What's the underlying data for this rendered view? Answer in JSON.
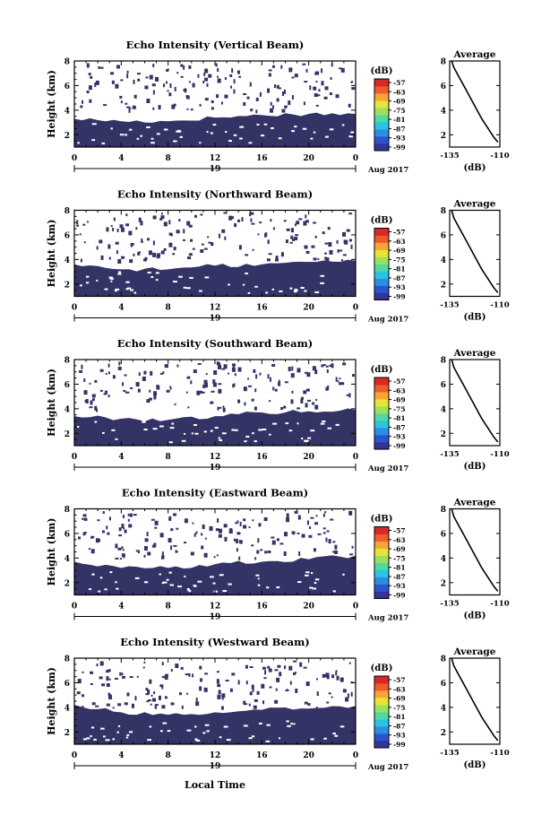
{
  "colors": {
    "low": "#333366",
    "colorbar": [
      "#333399",
      "#2c55cc",
      "#2a8ee8",
      "#2bc4e0",
      "#4ed8a4",
      "#9be25a",
      "#e8e23a",
      "#f6a632",
      "#f05a2c",
      "#d62a24"
    ]
  },
  "panels": [
    {
      "title": "Echo Intensity (Vertical Beam)",
      "ylabel": "Height (km)",
      "unit": "(dB)",
      "x_ticks": [
        "0",
        "4",
        "8",
        "12",
        "16",
        "20",
        "0"
      ],
      "date_label": "19",
      "month_label": "Aug 2017",
      "y_ticks": [
        "2",
        "4",
        "6",
        "8"
      ],
      "cb_ticks": [
        "-57",
        "-63",
        "-69",
        "-75",
        "-81",
        "-87",
        "-93",
        "-99"
      ],
      "avg_title": "Average",
      "avg_xticks": [
        "-135",
        "-110"
      ],
      "avg_yticks": [
        "2",
        "4",
        "6",
        "8"
      ],
      "avg_xlabel": "(dB)"
    },
    {
      "title": "Echo Intensity (Northward Beam)",
      "ylabel": "Height (km)",
      "unit": "(dB)",
      "x_ticks": [
        "0",
        "4",
        "8",
        "12",
        "16",
        "20",
        "0"
      ],
      "date_label": "19",
      "month_label": "Aug 2017",
      "y_ticks": [
        "2",
        "4",
        "6",
        "8"
      ],
      "cb_ticks": [
        "-57",
        "-63",
        "-69",
        "-75",
        "-81",
        "-87",
        "-93",
        "-99"
      ],
      "avg_title": "Average",
      "avg_xticks": [
        "-135",
        "-110"
      ],
      "avg_yticks": [
        "2",
        "4",
        "6",
        "8"
      ],
      "avg_xlabel": "(dB)"
    },
    {
      "title": "Echo Intensity (Southward Beam)",
      "ylabel": "Height (km)",
      "unit": "(dB)",
      "x_ticks": [
        "0",
        "4",
        "8",
        "12",
        "16",
        "20",
        "0"
      ],
      "date_label": "19",
      "month_label": "Aug 2017",
      "y_ticks": [
        "2",
        "4",
        "6",
        "8"
      ],
      "cb_ticks": [
        "-57",
        "-63",
        "-69",
        "-75",
        "-81",
        "-87",
        "-93",
        "-99"
      ],
      "avg_title": "Average",
      "avg_xticks": [
        "-135",
        "-110"
      ],
      "avg_yticks": [
        "2",
        "4",
        "6",
        "8"
      ],
      "avg_xlabel": "(dB)"
    },
    {
      "title": "Echo Intensity (Eastward Beam)",
      "ylabel": "Height (km)",
      "unit": "(dB)",
      "x_ticks": [
        "0",
        "4",
        "8",
        "12",
        "16",
        "20",
        "0"
      ],
      "date_label": "19",
      "month_label": "Aug 2017",
      "y_ticks": [
        "2",
        "4",
        "6",
        "8"
      ],
      "cb_ticks": [
        "-57",
        "-63",
        "-69",
        "-75",
        "-81",
        "-87",
        "-93",
        "-99"
      ],
      "avg_title": "Average",
      "avg_xticks": [
        "-135",
        "-110"
      ],
      "avg_yticks": [
        "2",
        "4",
        "6",
        "8"
      ],
      "avg_xlabel": "(dB)"
    },
    {
      "title": "Echo Intensity (Westward Beam)",
      "ylabel": "Height (km)",
      "unit": "(dB)",
      "x_ticks": [
        "0",
        "4",
        "8",
        "12",
        "16",
        "20",
        "0"
      ],
      "date_label": "19",
      "month_label": "Aug 2017",
      "y_ticks": [
        "2",
        "4",
        "6",
        "8"
      ],
      "cb_ticks": [
        "-57",
        "-63",
        "-69",
        "-75",
        "-81",
        "-87",
        "-93",
        "-99"
      ],
      "avg_title": "Average",
      "avg_xticks": [
        "-135",
        "-110"
      ],
      "avg_yticks": [
        "2",
        "4",
        "6",
        "8"
      ],
      "avg_xlabel": "(dB)"
    }
  ],
  "footer": {
    "xlabel": "Local Time"
  },
  "chart_data": [
    {
      "type": "heatmap",
      "title": "Echo Intensity (Vertical Beam)",
      "xlabel": "",
      "ylabel": "Height (km)",
      "xlim": [
        0,
        24
      ],
      "ylim": [
        1,
        8
      ],
      "colorbar_range": [
        -99,
        -57
      ],
      "echo_top_km": {
        "x": [
          0,
          4,
          8,
          12,
          16,
          20,
          24
        ],
        "y": [
          3.3,
          3.1,
          3.1,
          3.4,
          3.6,
          3.7,
          3.7
        ]
      }
    },
    {
      "type": "line",
      "title": "Average",
      "xlabel": "(dB)",
      "ylabel": "",
      "xlim": [
        -135,
        -110
      ],
      "ylim": [
        1,
        8
      ],
      "x": [
        -134,
        -133,
        -131,
        -129,
        -127,
        -125,
        -123,
        -121,
        -119,
        -117,
        -115,
        -113,
        -111
      ],
      "y": [
        8,
        7.5,
        6.9,
        6.3,
        5.7,
        5.1,
        4.5,
        3.9,
        3.3,
        2.8,
        2.3,
        1.8,
        1.4
      ]
    },
    {
      "type": "heatmap",
      "title": "Echo Intensity (Northward Beam)",
      "xlabel": "",
      "ylabel": "Height (km)",
      "xlim": [
        0,
        24
      ],
      "ylim": [
        1,
        8
      ],
      "colorbar_range": [
        -99,
        -57
      ],
      "echo_top_km": {
        "x": [
          0,
          4,
          8,
          12,
          16,
          20,
          24
        ],
        "y": [
          3.6,
          3.2,
          3.2,
          3.5,
          3.6,
          3.8,
          3.9
        ]
      }
    },
    {
      "type": "line",
      "title": "Average",
      "xlabel": "(dB)",
      "ylabel": "",
      "xlim": [
        -135,
        -110
      ],
      "ylim": [
        1,
        8
      ],
      "x": [
        -134,
        -133,
        -131,
        -129,
        -127,
        -125,
        -123,
        -121,
        -119,
        -117,
        -115,
        -113,
        -111
      ],
      "y": [
        8,
        7.4,
        6.8,
        6.2,
        5.6,
        5.0,
        4.4,
        3.8,
        3.2,
        2.7,
        2.2,
        1.7,
        1.3
      ]
    },
    {
      "type": "heatmap",
      "title": "Echo Intensity (Southward Beam)",
      "xlabel": "",
      "ylabel": "Height (km)",
      "xlim": [
        0,
        24
      ],
      "ylim": [
        1,
        8
      ],
      "colorbar_range": [
        -99,
        -57
      ],
      "echo_top_km": {
        "x": [
          0,
          4,
          8,
          12,
          16,
          20,
          24
        ],
        "y": [
          3.4,
          3.2,
          3.1,
          3.4,
          3.7,
          3.8,
          3.9
        ]
      }
    },
    {
      "type": "line",
      "title": "Average",
      "xlabel": "(dB)",
      "ylabel": "",
      "xlim": [
        -135,
        -110
      ],
      "ylim": [
        1,
        8
      ],
      "x": [
        -134,
        -133,
        -131,
        -129,
        -127,
        -125,
        -123,
        -121,
        -119,
        -117,
        -115,
        -113,
        -111
      ],
      "y": [
        8,
        7.4,
        6.8,
        6.2,
        5.6,
        5.0,
        4.4,
        3.8,
        3.2,
        2.7,
        2.2,
        1.7,
        1.3
      ]
    },
    {
      "type": "heatmap",
      "title": "Echo Intensity (Eastward Beam)",
      "xlabel": "",
      "ylabel": "Height (km)",
      "xlim": [
        0,
        24
      ],
      "ylim": [
        1,
        8
      ],
      "colorbar_range": [
        -99,
        -57
      ],
      "echo_top_km": {
        "x": [
          0,
          4,
          8,
          12,
          16,
          20,
          24
        ],
        "y": [
          3.7,
          3.2,
          3.2,
          3.5,
          3.7,
          3.9,
          4.2
        ]
      }
    },
    {
      "type": "line",
      "title": "Average",
      "xlabel": "(dB)",
      "ylabel": "",
      "xlim": [
        -135,
        -110
      ],
      "ylim": [
        1,
        8
      ],
      "x": [
        -134,
        -133,
        -131,
        -129,
        -127,
        -125,
        -123,
        -121,
        -119,
        -117,
        -115,
        -113,
        -111
      ],
      "y": [
        8,
        7.4,
        6.8,
        6.2,
        5.6,
        5.0,
        4.4,
        3.8,
        3.2,
        2.7,
        2.2,
        1.7,
        1.3
      ]
    },
    {
      "type": "heatmap",
      "title": "Echo Intensity (Westward Beam)",
      "xlabel": "Local Time",
      "ylabel": "Height (km)",
      "xlim": [
        0,
        24
      ],
      "ylim": [
        1,
        8
      ],
      "colorbar_range": [
        -99,
        -57
      ],
      "echo_top_km": {
        "x": [
          0,
          4,
          8,
          12,
          16,
          20,
          24
        ],
        "y": [
          4.2,
          3.6,
          3.4,
          3.6,
          3.8,
          3.9,
          4.1
        ]
      }
    },
    {
      "type": "line",
      "title": "Average",
      "xlabel": "(dB)",
      "ylabel": "",
      "xlim": [
        -135,
        -110
      ],
      "ylim": [
        1,
        8
      ],
      "x": [
        -134,
        -133,
        -131,
        -129,
        -127,
        -125,
        -123,
        -121,
        -119,
        -117,
        -115,
        -113,
        -111
      ],
      "y": [
        8,
        7.4,
        6.8,
        6.2,
        5.6,
        5.0,
        4.4,
        3.8,
        3.2,
        2.7,
        2.2,
        1.7,
        1.3
      ]
    }
  ]
}
